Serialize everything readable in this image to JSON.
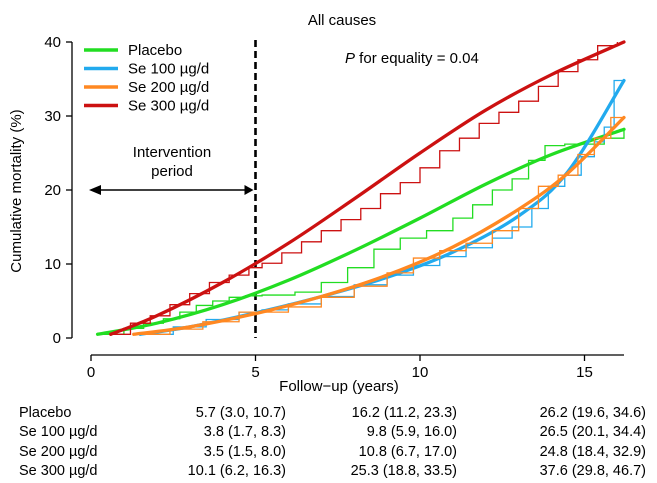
{
  "chart_data": {
    "type": "line",
    "title": "All causes",
    "annotation_p": "P",
    "annotation_rest": " for equality = 0.04",
    "xlabel": "Follow−up (years)",
    "ylabel": "Cumulative mortality (%)",
    "xlim": [
      0,
      16.2
    ],
    "ylim": [
      0,
      40
    ],
    "xticks": [
      0,
      5,
      10,
      15
    ],
    "yticks": [
      0,
      10,
      20,
      30,
      40
    ],
    "legend_position": "top-left",
    "grid": false,
    "intervention": {
      "label_line1": "Intervention",
      "label_line2": "period",
      "x_end": 5
    },
    "series": [
      {
        "name": "Placebo",
        "color": "#22dd22",
        "smooth_x": [
          0.2,
          2,
          4,
          6,
          8,
          10,
          12,
          14,
          16.2
        ],
        "smooth_y": [
          0.5,
          2.0,
          4.5,
          7.8,
          11.8,
          16.2,
          20.8,
          24.8,
          28.2
        ],
        "step_x": [
          0.2,
          1.0,
          1.6,
          2.2,
          2.7,
          3.2,
          3.7,
          4.2,
          4.7,
          5.2,
          6.2,
          7.0,
          7.8,
          8.6,
          9.4,
          10.2,
          11.0,
          11.6,
          12.2,
          12.8,
          13.3,
          13.8,
          14.4,
          15.0,
          15.6,
          16.2
        ],
        "step_y": [
          0.5,
          1.3,
          2.0,
          2.6,
          3.5,
          4.4,
          5.0,
          5.5,
          5.7,
          5.8,
          6.2,
          7.5,
          9.5,
          12.0,
          13.5,
          14.5,
          16.2,
          18.0,
          20.0,
          21.5,
          24.0,
          26.0,
          26.2,
          26.2,
          27.0,
          28.0
        ]
      },
      {
        "name": "Se 100 µg/d",
        "color": "#22aaee",
        "smooth_x": [
          1.5,
          3,
          5,
          7,
          9,
          11,
          13,
          14.5,
          16.2
        ],
        "smooth_y": [
          0.5,
          1.5,
          3.4,
          5.6,
          8.2,
          11.6,
          16.5,
          22.5,
          34.8
        ],
        "step_x": [
          1.5,
          2.5,
          3.5,
          4.5,
          5.2,
          6.0,
          7.0,
          8.0,
          9.0,
          9.8,
          10.6,
          11.4,
          12.2,
          12.8,
          13.4,
          13.9,
          14.4,
          14.9,
          15.3,
          15.6,
          15.9,
          16.2
        ],
        "step_y": [
          0.5,
          1.5,
          2.5,
          3.5,
          3.8,
          4.6,
          5.6,
          7.2,
          8.5,
          9.8,
          11.0,
          12.2,
          13.5,
          15.0,
          17.5,
          20.5,
          22.0,
          24.5,
          26.5,
          28.5,
          34.8,
          34.8
        ]
      },
      {
        "name": "Se 200 µg/d",
        "color": "#ff8822",
        "smooth_x": [
          1.3,
          3,
          5,
          7,
          9,
          11,
          13,
          14.5,
          16.2
        ],
        "smooth_y": [
          0.5,
          1.5,
          3.3,
          5.6,
          8.5,
          12.3,
          17.4,
          22.3,
          29.8
        ],
        "step_x": [
          1.3,
          2.4,
          3.4,
          4.5,
          5.2,
          6.0,
          7.0,
          8.0,
          9.0,
          9.8,
          10.6,
          11.4,
          12.2,
          13.0,
          13.6,
          14.2,
          14.8,
          15.3,
          15.8,
          16.2
        ],
        "step_y": [
          0.5,
          1.2,
          2.2,
          3.5,
          3.5,
          4.2,
          5.5,
          7.0,
          8.8,
          10.8,
          11.8,
          12.8,
          14.5,
          17.5,
          20.5,
          22.0,
          24.8,
          27.0,
          29.8,
          29.8
        ]
      },
      {
        "name": "Se 300 µg/d",
        "color": "#cc1111",
        "smooth_x": [
          0.6,
          2,
          4,
          6,
          8,
          10,
          12,
          14,
          16.2
        ],
        "smooth_y": [
          0.5,
          3.0,
          7.5,
          12.8,
          18.8,
          25.0,
          30.8,
          35.6,
          40.0
        ],
        "step_x": [
          0.6,
          1.2,
          1.8,
          2.4,
          3.0,
          3.6,
          4.2,
          4.8,
          5.2,
          5.8,
          6.4,
          7.0,
          7.6,
          8.2,
          8.8,
          9.4,
          10.0,
          10.6,
          11.2,
          11.8,
          12.4,
          13.0,
          13.6,
          14.2,
          14.8,
          15.4,
          16.0
        ],
        "step_y": [
          0.5,
          2.0,
          3.0,
          4.5,
          6.0,
          7.5,
          8.5,
          9.5,
          10.1,
          11.5,
          13.0,
          14.5,
          16.0,
          17.5,
          19.5,
          21.0,
          23.0,
          25.3,
          27.0,
          29.0,
          30.5,
          32.0,
          34.0,
          36.0,
          37.6,
          39.5,
          40.0
        ]
      }
    ]
  },
  "estimates": [
    {
      "group": "Placebo",
      "y5": "5.7 (3.0, 10.7)",
      "y10": "16.2 (11.2, 23.3)",
      "y15": "26.2 (19.6, 34.6)"
    },
    {
      "group": "Se 100 µg/d",
      "y5": "3.8 (1.7, 8.3)",
      "y10": "9.8 (5.9, 16.0)",
      "y15": "26.5 (20.1, 34.4)"
    },
    {
      "group": "Se 200 µg/d",
      "y5": "3.5 (1.5, 8.0)",
      "y10": "10.8 (6.7, 17.0)",
      "y15": "24.8 (18.4, 32.9)"
    },
    {
      "group": "Se 300 µg/d",
      "y5": "10.1 (6.2, 16.3)",
      "y10": "25.3 (18.8, 33.5)",
      "y15": "37.6 (29.8, 46.7)"
    }
  ]
}
